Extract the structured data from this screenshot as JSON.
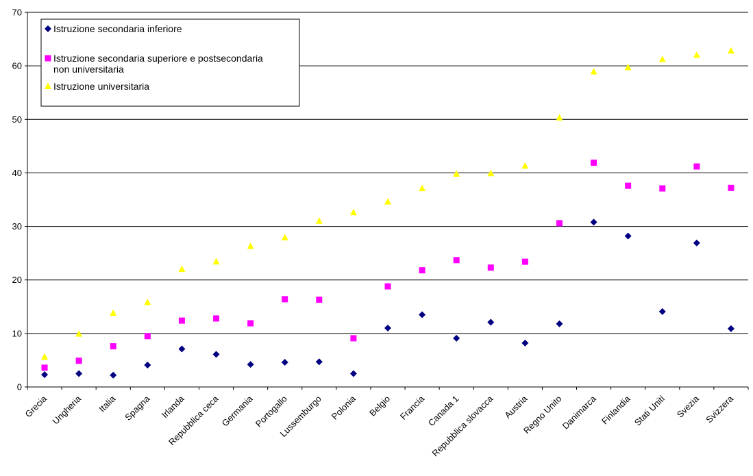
{
  "chart_data": {
    "type": "scatter",
    "title": "",
    "xlabel": "",
    "ylabel": "",
    "ylim": [
      0,
      70
    ],
    "yticks": [
      0,
      10,
      20,
      30,
      40,
      50,
      60,
      70
    ],
    "grid": "horizontal",
    "legend_position": "top-left",
    "categories": [
      "Grecia",
      "Ungheria",
      "Italia",
      "Spagna",
      "Irlanda",
      "Repubblica ceca",
      "Germania",
      "Portogallo",
      "Lussemburgo",
      "Polonia",
      "Belgio",
      "Francia",
      "Canada 1",
      "Repubblica slovacca",
      "Austria",
      "Regno Unito",
      "Danimarca",
      "Finlandia",
      "Stati Uniti",
      "Svezia",
      "Svizzera"
    ],
    "series": [
      {
        "name": "Istruzione secondaria inferiore",
        "marker": "diamond",
        "color": "#000080",
        "values": [
          2.3,
          2.5,
          2.2,
          4.1,
          7.1,
          6.1,
          4.2,
          4.6,
          4.7,
          2.5,
          11.0,
          13.5,
          9.1,
          12.1,
          8.2,
          11.8,
          30.8,
          28.2,
          14.1,
          26.9,
          10.9
        ]
      },
      {
        "name": "Istruzione secondaria superiore e postsecondaria non universitaria",
        "marker": "square",
        "color": "#ff00ff",
        "values": [
          3.6,
          4.9,
          7.6,
          9.5,
          12.4,
          12.8,
          11.9,
          16.4,
          16.3,
          9.1,
          18.8,
          21.8,
          23.7,
          22.3,
          23.4,
          30.6,
          41.9,
          37.6,
          37.1,
          41.2,
          37.2
        ]
      },
      {
        "name": "Istruzione universitaria",
        "marker": "triangle",
        "color": "#ffff00",
        "values": [
          5.6,
          9.9,
          13.8,
          15.8,
          22.0,
          23.4,
          26.3,
          27.9,
          31.0,
          32.6,
          34.6,
          37.1,
          39.8,
          39.9,
          41.3,
          50.3,
          58.9,
          59.7,
          61.2,
          62.0,
          62.8
        ]
      }
    ]
  }
}
